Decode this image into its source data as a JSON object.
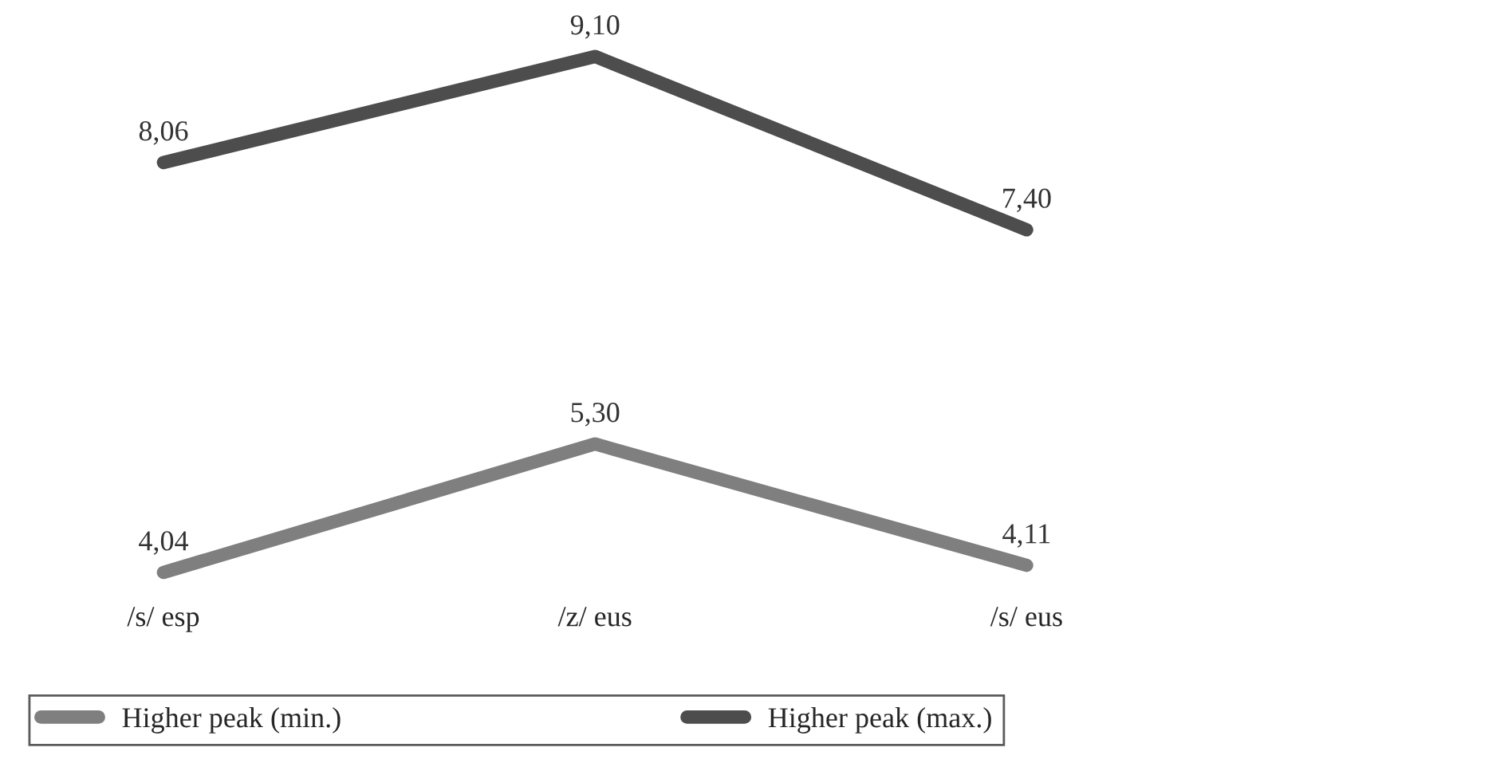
{
  "chart_data": {
    "type": "line",
    "categories": [
      "/s/ esp",
      "/z/ eus",
      "/s/ eus"
    ],
    "series": [
      {
        "name": "Higher peak (min.)",
        "color": "#7f7f7f",
        "values": [
          4.04,
          5.3,
          4.11
        ],
        "value_labels": [
          "4,04",
          "5,30",
          "4,11"
        ]
      },
      {
        "name": "Higher peak (max.)",
        "color": "#4d4d4d",
        "values": [
          8.06,
          9.1,
          7.4
        ],
        "value_labels": [
          "8,06",
          "9,10",
          "7,40"
        ]
      }
    ],
    "tick_labels": "x",
    "grid": false,
    "legend": "bottom",
    "marker": "none",
    "line_style": "solid"
  }
}
